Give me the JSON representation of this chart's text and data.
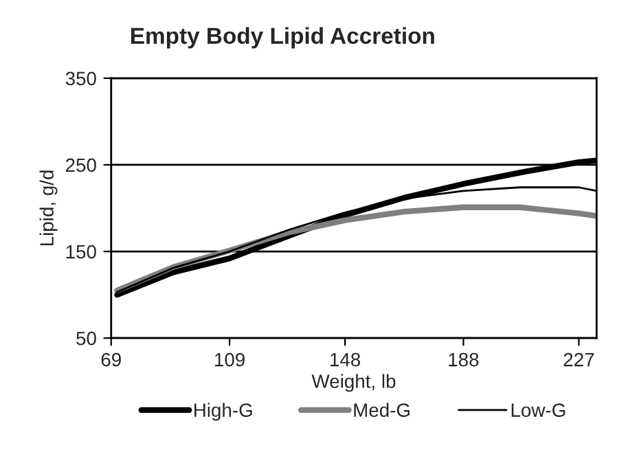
{
  "chart_data": {
    "type": "line",
    "title": "Empty Body Lipid Accretion",
    "xlabel": "Weight, lb",
    "ylabel": "Lipid, g/d",
    "x": [
      71,
      90,
      109,
      129,
      148,
      168,
      188,
      207,
      227,
      233
    ],
    "series": [
      {
        "name": "High-G",
        "color": "#000000",
        "values": [
          100,
          126,
          142,
          168,
          192,
          212,
          228,
          241,
          253,
          255
        ]
      },
      {
        "name": "Med-G",
        "color": "#808080",
        "values": [
          105,
          132,
          151,
          172,
          186,
          196,
          201,
          201,
          194,
          191
        ]
      },
      {
        "name": "Low-G",
        "color": "#000000",
        "values": [
          103,
          131,
          150,
          175,
          195,
          211,
          220,
          224,
          224,
          220
        ]
      }
    ],
    "xlim": [
      69,
      233
    ],
    "xticks": [
      69,
      109,
      148,
      188,
      227
    ],
    "ylim": [
      50,
      350
    ],
    "yticks": [
      50,
      150,
      250,
      350
    ],
    "grid": "y",
    "legend": "bottom",
    "marker": "none",
    "line_style": "solid"
  }
}
